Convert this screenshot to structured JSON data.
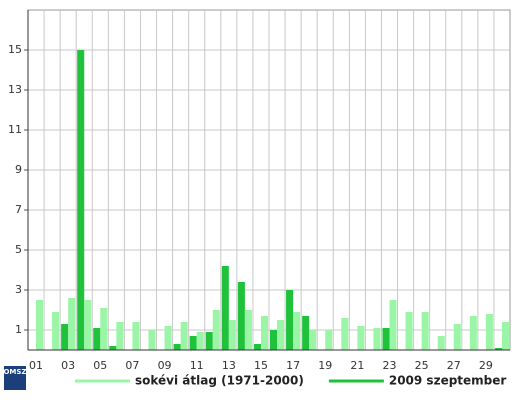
{
  "chart_data": {
    "type": "bar",
    "categories": [
      "01",
      null,
      "03",
      null,
      "05",
      null,
      "07",
      null,
      "09",
      null,
      "11",
      null,
      "13",
      null,
      "15",
      null,
      "17",
      null,
      "19",
      null,
      "21",
      null,
      "23",
      null,
      "25",
      null,
      "27",
      null,
      "29",
      null
    ],
    "series": [
      {
        "name": "2009 szeptember",
        "color": "#1fc23a",
        "values": [
          0,
          0,
          1.3,
          15,
          1.1,
          0.2,
          0,
          0,
          0,
          0.3,
          0.7,
          0.9,
          4.2,
          3.4,
          0.3,
          1.0,
          3.0,
          1.7,
          0,
          0,
          0,
          0,
          1.1,
          0,
          0,
          0,
          0,
          0,
          0,
          0.1
        ]
      },
      {
        "name": "sokévi átlag (1971-2000)",
        "color": "#9af5a6",
        "values": [
          2.5,
          1.9,
          2.6,
          2.5,
          2.1,
          1.4,
          1.4,
          1.0,
          1.2,
          1.4,
          0.9,
          2.0,
          1.5,
          2.0,
          1.7,
          1.5,
          1.9,
          1.0,
          1.0,
          1.6,
          1.2,
          1.1,
          2.5,
          1.9,
          1.9,
          0.7,
          1.3,
          1.7,
          1.8,
          1.4
        ]
      }
    ],
    "legend_order": [
      1,
      0
    ],
    "ylim": [
      0,
      17
    ],
    "yticks": [
      1,
      3,
      5,
      7,
      9,
      11,
      13,
      15
    ],
    "grid": true
  },
  "logo": "OMSZ"
}
